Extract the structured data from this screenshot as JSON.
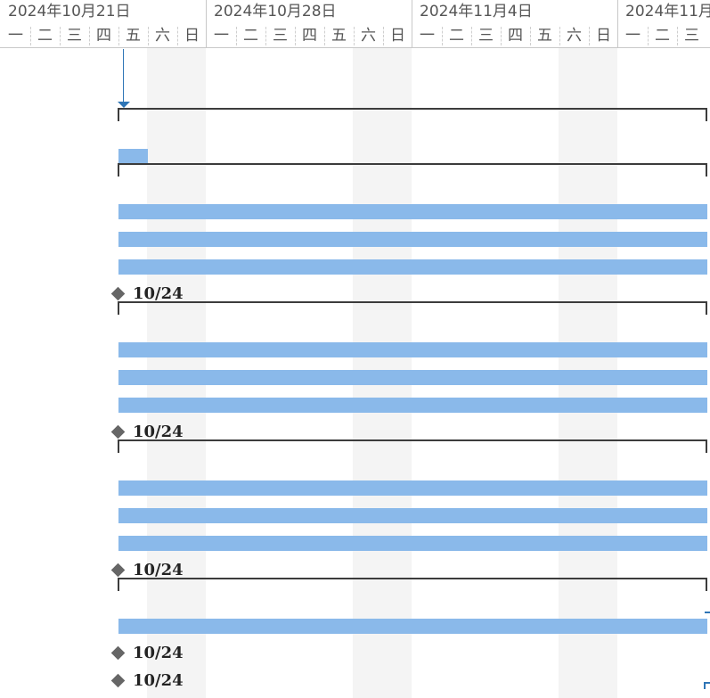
{
  "timescale": {
    "weeks": [
      {
        "label": "2024年10月21日",
        "days": [
          "一",
          "二",
          "三",
          "四",
          "五",
          "六",
          "日"
        ]
      },
      {
        "label": "2024年10月28日",
        "days": [
          "一",
          "二",
          "三",
          "四",
          "五",
          "六",
          "日"
        ]
      },
      {
        "label": "2024年11月4日",
        "days": [
          "一",
          "二",
          "三",
          "四",
          "五",
          "六",
          "日"
        ]
      },
      {
        "label": "2024年11月",
        "days": [
          "一",
          "二",
          "三"
        ]
      }
    ]
  },
  "colors": {
    "task_bar": "#8ab9ea",
    "summary_bar": "#3c3c3c",
    "milestone": "#666666",
    "link": "#2e75b6",
    "weekend_shade": "#f4f4f4"
  },
  "gantt_rows": [
    {
      "type": "summary"
    },
    {
      "type": "task"
    },
    {
      "type": "summary"
    },
    {
      "type": "task"
    },
    {
      "type": "task"
    },
    {
      "type": "task"
    },
    {
      "type": "milestone",
      "label": "10/24"
    },
    {
      "type": "summary"
    },
    {
      "type": "task"
    },
    {
      "type": "task"
    },
    {
      "type": "task"
    },
    {
      "type": "milestone",
      "label": "10/24"
    },
    {
      "type": "summary"
    },
    {
      "type": "task"
    },
    {
      "type": "task"
    },
    {
      "type": "task"
    },
    {
      "type": "milestone",
      "label": "10/24"
    },
    {
      "type": "summary"
    },
    {
      "type": "task"
    },
    {
      "type": "milestone",
      "label": "10/24"
    },
    {
      "type": "milestone",
      "label": "10/24"
    }
  ]
}
